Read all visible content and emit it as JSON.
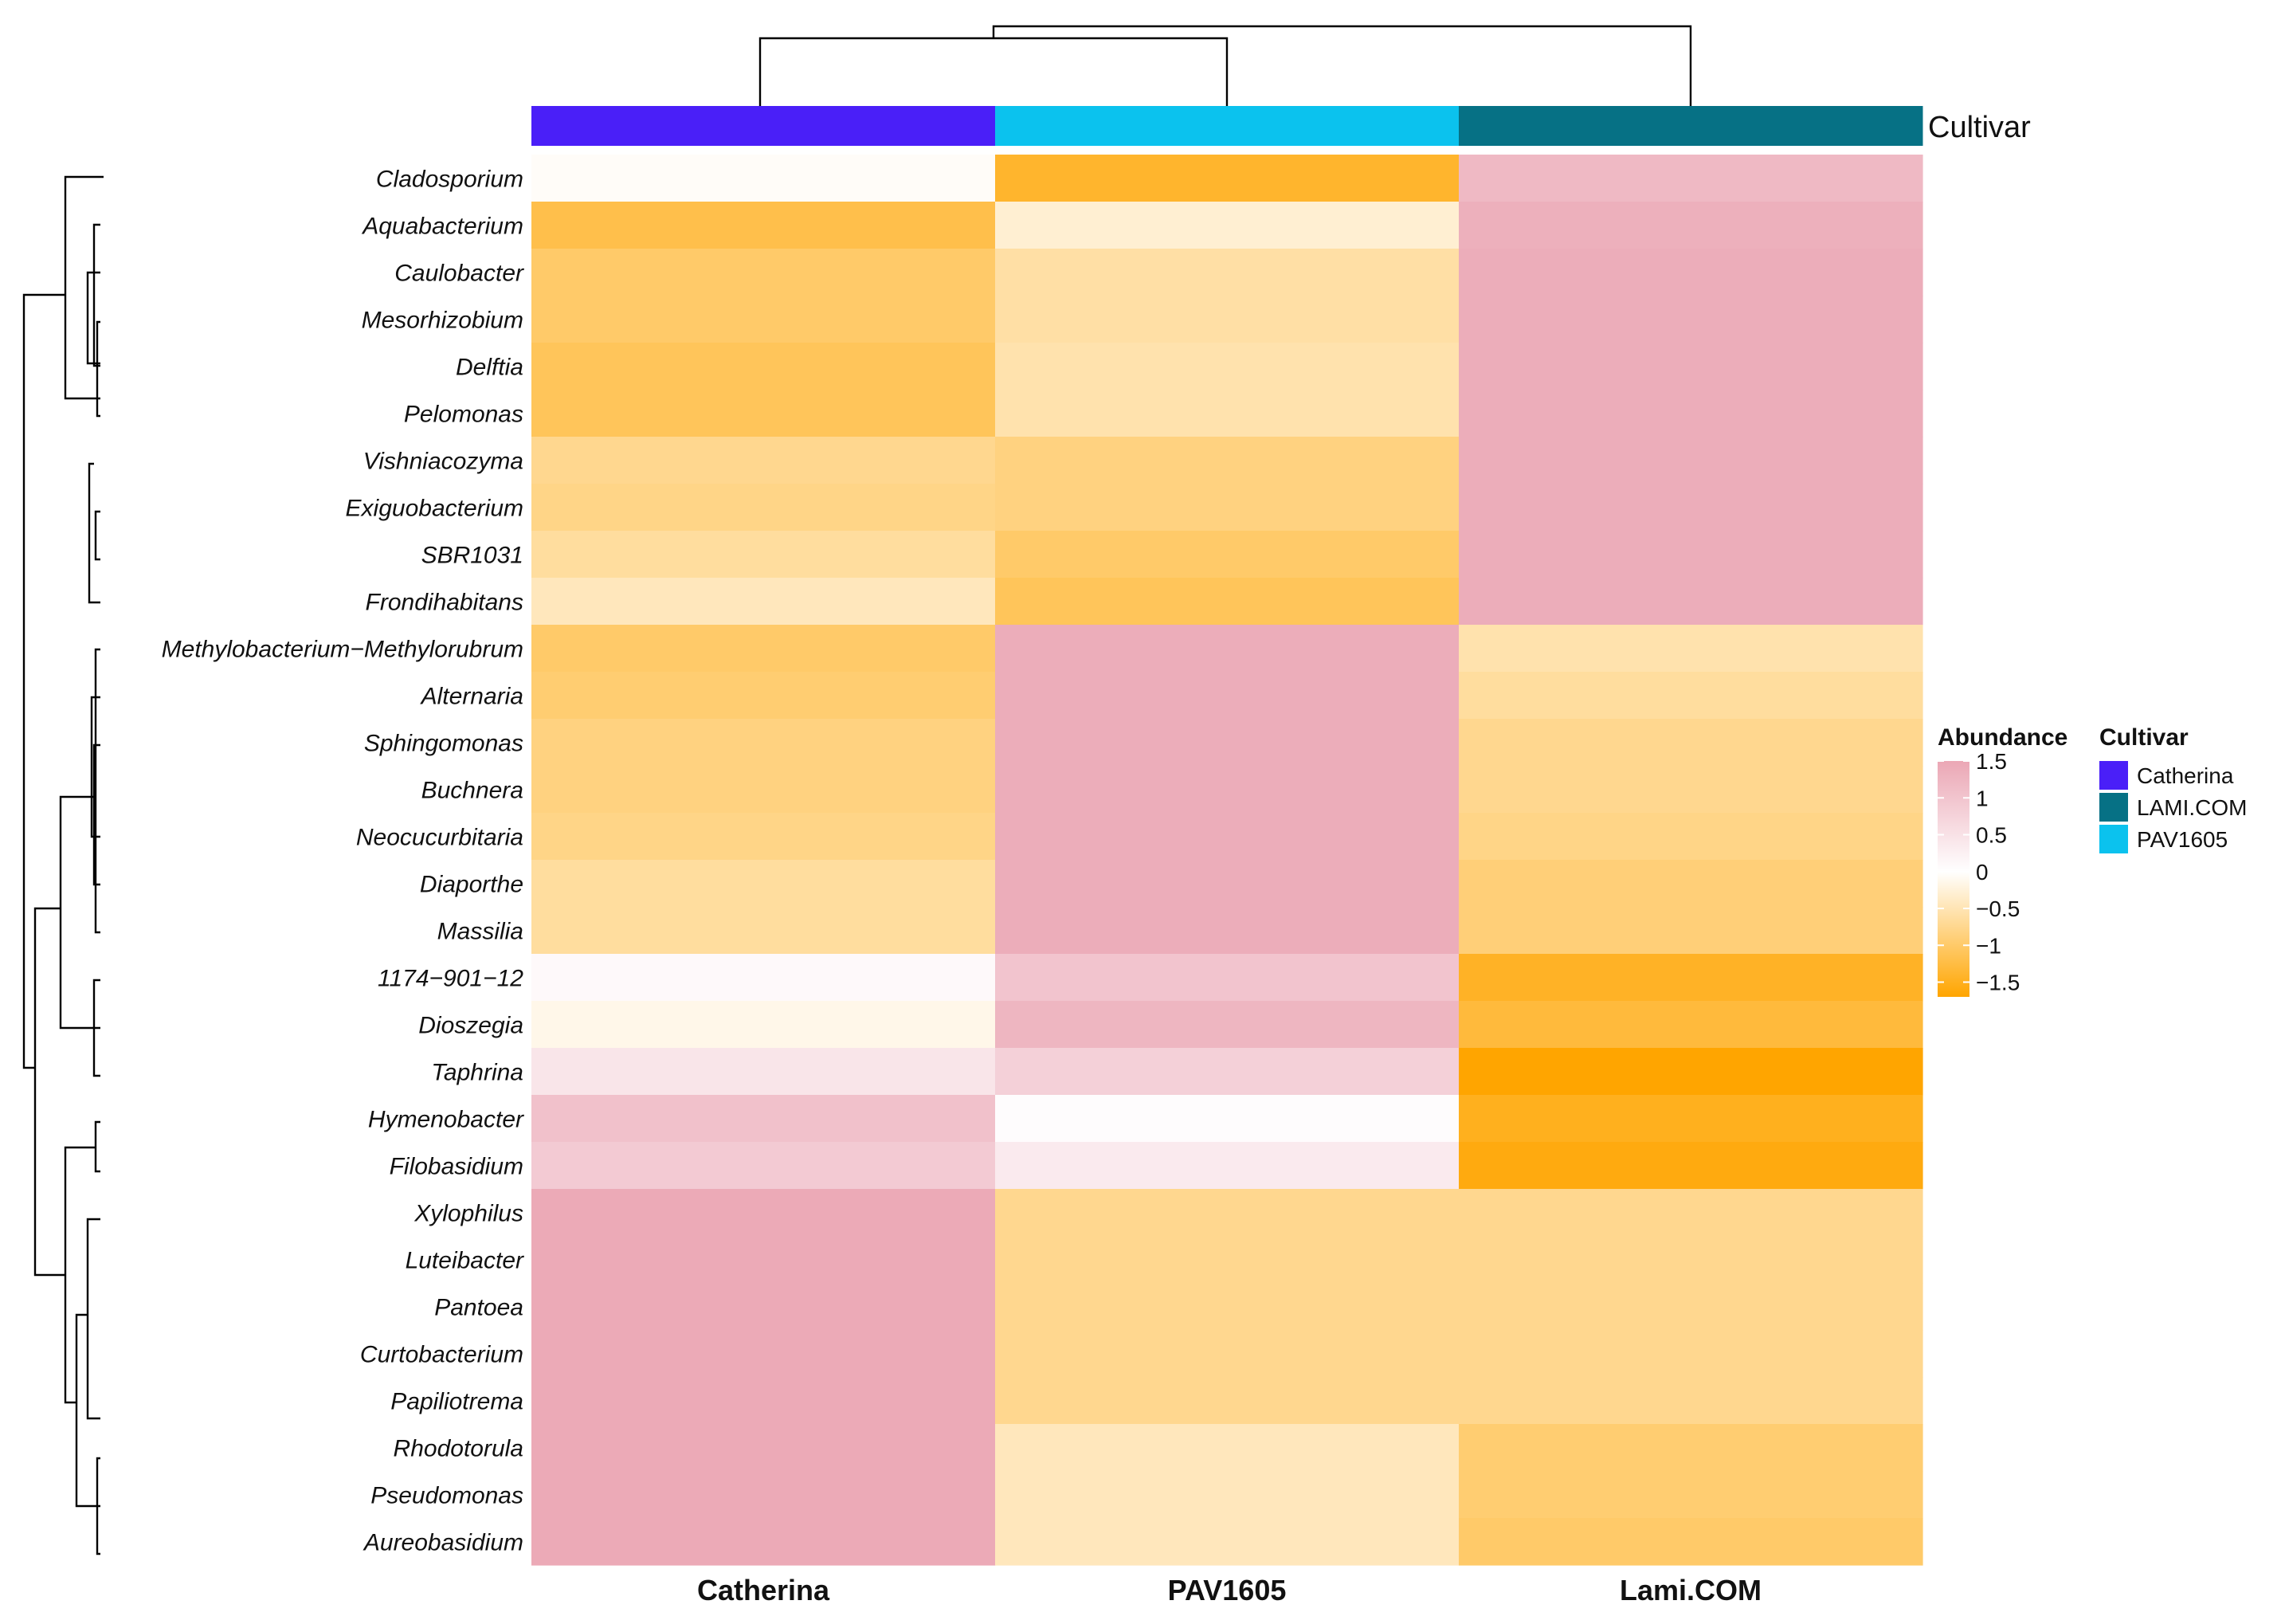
{
  "chart_data": {
    "type": "heatmap",
    "columns": [
      "Catherina",
      "PAV1605",
      "Lami.COM"
    ],
    "column_annotation": {
      "title": "Cultivar",
      "values": [
        "Catherina",
        "PAV1605",
        "LAMI.COM"
      ]
    },
    "rows": [
      {
        "name": "Cladosporium",
        "values": [
          -0.05,
          -1.4,
          1.2
        ]
      },
      {
        "name": "Aquabacterium",
        "values": [
          -1.2,
          -0.3,
          1.35
        ]
      },
      {
        "name": "Caulobacter",
        "values": [
          -1.0,
          -0.6,
          1.4
        ]
      },
      {
        "name": "Mesorhizobium",
        "values": [
          -1.0,
          -0.6,
          1.4
        ]
      },
      {
        "name": "Delftia",
        "values": [
          -1.1,
          -0.55,
          1.4
        ]
      },
      {
        "name": "Pelomonas",
        "values": [
          -1.1,
          -0.55,
          1.4
        ]
      },
      {
        "name": "Vishniacozyma",
        "values": [
          -0.75,
          -0.85,
          1.4
        ]
      },
      {
        "name": "Exiguobacterium",
        "values": [
          -0.8,
          -0.85,
          1.4
        ]
      },
      {
        "name": "SBR1031",
        "values": [
          -0.65,
          -1.0,
          1.4
        ]
      },
      {
        "name": "Frondihabitans",
        "values": [
          -0.45,
          -1.1,
          1.4
        ]
      },
      {
        "name": "Methylobacterium−Methylorubrum",
        "values": [
          -1.0,
          1.4,
          -0.55
        ]
      },
      {
        "name": "Alternaria",
        "values": [
          -0.95,
          1.4,
          -0.65
        ]
      },
      {
        "name": "Sphingomonas",
        "values": [
          -0.85,
          1.4,
          -0.75
        ]
      },
      {
        "name": "Buchnera",
        "values": [
          -0.85,
          1.4,
          -0.75
        ]
      },
      {
        "name": "Neocucurbitaria",
        "values": [
          -0.8,
          1.4,
          -0.8
        ]
      },
      {
        "name": "Diaporthe",
        "values": [
          -0.65,
          1.4,
          -0.9
        ]
      },
      {
        "name": "Massilia",
        "values": [
          -0.65,
          1.4,
          -0.9
        ]
      },
      {
        "name": "1174−901−12",
        "values": [
          0.1,
          1.0,
          -1.45
        ]
      },
      {
        "name": "Dioszegia",
        "values": [
          -0.15,
          1.25,
          -1.3
        ]
      },
      {
        "name": "Taphrina",
        "values": [
          0.45,
          0.8,
          -1.7
        ]
      },
      {
        "name": "Hymenobacter",
        "values": [
          1.05,
          0.05,
          -1.5
        ]
      },
      {
        "name": "Filobasidium",
        "values": [
          0.9,
          0.35,
          -1.6
        ]
      },
      {
        "name": "Xylophilus",
        "values": [
          1.45,
          -0.75,
          -0.75
        ]
      },
      {
        "name": "Luteibacter",
        "values": [
          1.45,
          -0.75,
          -0.75
        ]
      },
      {
        "name": "Pantoea",
        "values": [
          1.45,
          -0.75,
          -0.75
        ]
      },
      {
        "name": "Curtobacterium",
        "values": [
          1.45,
          -0.75,
          -0.75
        ]
      },
      {
        "name": "Papiliotrema",
        "values": [
          1.45,
          -0.75,
          -0.75
        ]
      },
      {
        "name": "Rhodotorula",
        "values": [
          1.45,
          -0.45,
          -0.95
        ]
      },
      {
        "name": "Pseudomonas",
        "values": [
          1.45,
          -0.45,
          -0.95
        ]
      },
      {
        "name": "Aureobasidium",
        "values": [
          1.45,
          -0.45,
          -1.0
        ]
      }
    ],
    "color_scale": {
      "min": -1.7,
      "mid": 0,
      "max": 1.5,
      "low_color": "#FFA500",
      "mid_color": "#FFFFFF",
      "high_color": "#EBA7B5"
    },
    "legend_abundance": {
      "title": "Abundance",
      "ticks": [
        "1.5",
        "1",
        "0.5",
        "0",
        "−0.5",
        "−1",
        "−1.5"
      ]
    },
    "legend_cultivar": {
      "title": "Cultivar",
      "items": [
        {
          "label": "Catherina",
          "color": "#4A1FF8"
        },
        {
          "label": "LAMI.COM",
          "color": "#067185"
        },
        {
          "label": "PAV1605",
          "color": "#0BC2EE"
        }
      ]
    }
  }
}
